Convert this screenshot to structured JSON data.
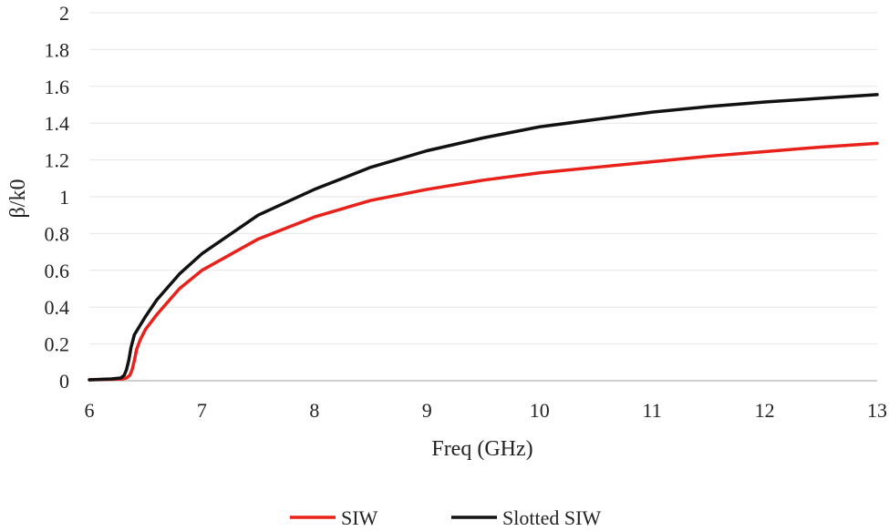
{
  "chart_data": {
    "type": "line",
    "title": "",
    "xlabel": "Freq (GHz)",
    "ylabel": "β/k0",
    "xlim": [
      6,
      13
    ],
    "ylim": [
      0,
      2
    ],
    "xticks": [
      "6",
      "7",
      "8",
      "9",
      "10",
      "11",
      "12",
      "13"
    ],
    "yticks": [
      "0",
      "0.2",
      "0.4",
      "0.6",
      "0.8",
      "1",
      "1.2",
      "1.4",
      "1.6",
      "1.8",
      "2"
    ],
    "grid": "horizontal",
    "legend_position": "bottom-center",
    "series": [
      {
        "name": "SIW",
        "color": "#e8221b",
        "x": [
          6.0,
          6.2,
          6.3,
          6.33,
          6.36,
          6.38,
          6.4,
          6.42,
          6.45,
          6.5,
          6.6,
          6.8,
          7.0,
          7.5,
          8.0,
          8.5,
          9.0,
          9.5,
          10.0,
          10.5,
          11.0,
          11.5,
          12.0,
          12.5,
          13.0
        ],
        "y": [
          0.005,
          0.008,
          0.01,
          0.015,
          0.03,
          0.06,
          0.11,
          0.17,
          0.22,
          0.28,
          0.36,
          0.5,
          0.6,
          0.77,
          0.89,
          0.98,
          1.04,
          1.09,
          1.13,
          1.16,
          1.19,
          1.22,
          1.245,
          1.27,
          1.29
        ]
      },
      {
        "name": "Slotted SIW",
        "color": "#111111",
        "x": [
          6.0,
          6.2,
          6.28,
          6.31,
          6.33,
          6.35,
          6.37,
          6.4,
          6.45,
          6.5,
          6.6,
          6.8,
          7.0,
          7.5,
          8.0,
          8.5,
          9.0,
          9.5,
          10.0,
          10.5,
          11.0,
          11.5,
          12.0,
          12.5,
          13.0
        ],
        "y": [
          0.005,
          0.01,
          0.015,
          0.03,
          0.06,
          0.11,
          0.18,
          0.25,
          0.3,
          0.35,
          0.44,
          0.58,
          0.69,
          0.9,
          1.04,
          1.16,
          1.25,
          1.32,
          1.38,
          1.42,
          1.46,
          1.49,
          1.515,
          1.535,
          1.555
        ]
      }
    ]
  }
}
